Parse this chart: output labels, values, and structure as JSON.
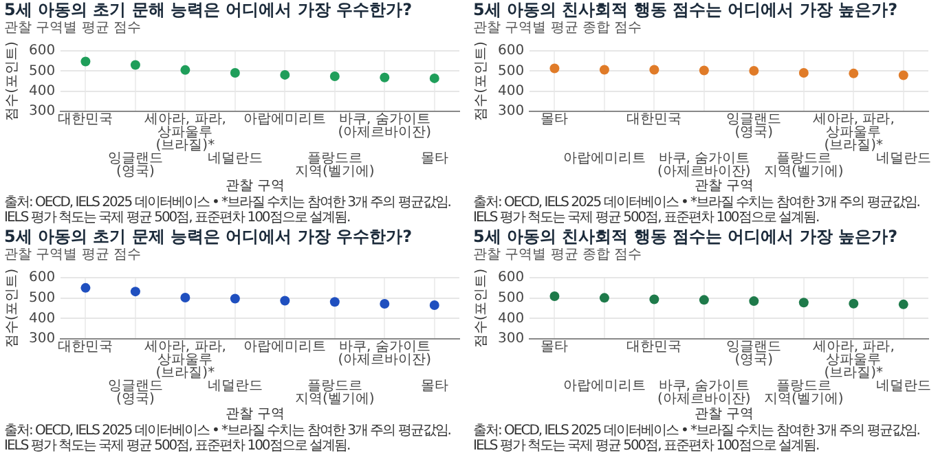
{
  "chart_data": [
    {
      "type": "scatter",
      "title": "5세 아동의 초기 문해 능력은 어디에서 가장 우수한가?",
      "subtitle": "관찰 구역별 평균 점수",
      "xlabel": "관찰 구역",
      "ylabel": "점수(포인트)",
      "categories": [
        "대한민국",
        "잉글랜드\n(영국)",
        "세아라, 파라,\n상파울루(브라질)*",
        "네덜란드",
        "아랍에미리트",
        "플랑드르\n지역(벨기에)",
        "바쿠, 숨가이트\n(아제르바이잔)",
        "몰타"
      ],
      "values": [
        547,
        530,
        505,
        491,
        481,
        474,
        468,
        464
      ],
      "color": "#1f9e5a",
      "ylim": [
        300,
        600
      ],
      "yticks": [
        300,
        400,
        500,
        600
      ],
      "grid": true,
      "marker": "circle",
      "annotations": [
        "출처: OECD, IELS 2025 데이터베이스 • *브라질 수치는 참여한 3개 주의 평균값임. IELS 평가 척도는 국제 평균 500점, 표준편차 100점으로 설계됨."
      ]
    },
    {
      "type": "scatter",
      "title": "5세 아동의 친사회적 행동 점수는 어디에서 가장 높은가?",
      "subtitle": "관찰 구역별 평균 종합 점수",
      "xlabel": "관찰 구역",
      "ylabel": "점수(포인트)",
      "categories": [
        "몰타",
        "아랍에미리트",
        "대한민국",
        "바쿠, 숨가이트\n(아제르바이잔)",
        "잉글랜드\n(영국)",
        "플랑드르\n지역(벨기에)",
        "세아라, 파라,\n상파울루(브라질)*",
        "네덜란드"
      ],
      "values": [
        513,
        506,
        506,
        503,
        501,
        491,
        488,
        479
      ],
      "color": "#e07b28",
      "ylim": [
        300,
        600
      ],
      "yticks": [
        300,
        400,
        500,
        600
      ],
      "grid": true,
      "marker": "circle",
      "annotations": [
        "출처: OECD, IELS 2025 데이터베이스 • *브라질 수치는 참여한 3개 주의 평균값임. IELS 평가 척도는 국제 평균 500점, 표준편차 100점으로 설계됨."
      ]
    },
    {
      "type": "scatter",
      "title": "5세 아동의 초기 문제 능력은 어디에서 가장 우수한가?",
      "subtitle": "관찰 구역별 평균 점수",
      "xlabel": "관찰 구역",
      "ylabel": "점수(포인트)",
      "categories": [
        "대한민국",
        "잉글랜드\n(영국)",
        "세아라, 파라,\n상파울루(브라질)*",
        "네덜란드",
        "아랍에미리트",
        "플랑드르\n지역(벨기에)",
        "바쿠, 숨가이트\n(아제르바이잔)",
        "몰타"
      ],
      "values": [
        550,
        532,
        502,
        497,
        487,
        481,
        472,
        465
      ],
      "color": "#1f4fbf",
      "ylim": [
        300,
        600
      ],
      "yticks": [
        300,
        400,
        500,
        600
      ],
      "grid": true,
      "marker": "circle",
      "annotations": [
        "출처: OECD, IELS 2025 데이터베이스 • *브라질 수치는 참여한 3개 주의 평균값임.",
        "IELS 평가 척도는 국제 평균 500점, 표준편차 100점으로 설계됨."
      ]
    },
    {
      "type": "scatter",
      "title": "5세 아동의 친사회적 행동 점수는 어디에서 가장 높은가?",
      "subtitle": "관찰 구역별 평균 종합 점수",
      "xlabel": "관찰 구역",
      "ylabel": "점수(포인트)",
      "categories": [
        "몰타",
        "아랍에미리트",
        "대한민국",
        "바쿠, 숨가이트\n(아제르바이잔)",
        "잉글랜드\n(영국)",
        "플랑드르\n지역(벨기에)",
        "세아라, 파라,\n상파울루(브라질)*",
        "네덜란드"
      ],
      "values": [
        509,
        501,
        494,
        491,
        485,
        478,
        473,
        469
      ],
      "color": "#1e7a4a",
      "ylim": [
        300,
        600
      ],
      "yticks": [
        300,
        400,
        500,
        600
      ],
      "grid": true,
      "marker": "circle",
      "annotations": [
        "출처: OECD, IELS 2025 데이터베이스 • *브라질 수치는 참여한 3개 주의 평균값임.",
        "IELS 평가 척도는 국제 평균 500점, 표준편차 100점으로 설계됨."
      ]
    }
  ]
}
